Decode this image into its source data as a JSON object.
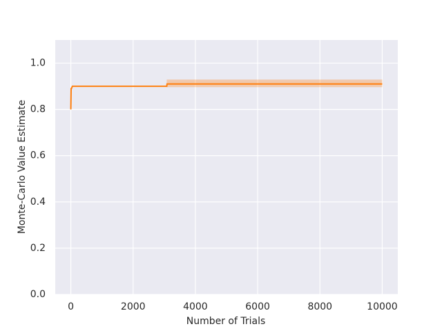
{
  "chart_data": {
    "type": "line",
    "x_label": "Number of Trials",
    "y_label": "Monte-Carlo Value Estimate",
    "x": [
      0,
      10,
      20,
      50,
      3080,
      3090,
      10000
    ],
    "series": [
      {
        "color": "#ff7f0e",
        "values": [
          0.8,
          0.89,
          0.89,
          0.9,
          0.9,
          0.91,
          0.91
        ]
      }
    ],
    "band": {
      "color": "#ff7f0e",
      "x": [
        3080,
        10000
      ],
      "lower": [
        0.896,
        0.896
      ],
      "upper": [
        0.929,
        0.929
      ]
    },
    "xlim": [
      -500,
      10500
    ],
    "ylim": [
      0,
      1.1
    ],
    "xticks": [
      0,
      2000,
      4000,
      6000,
      8000,
      10000
    ],
    "yticks": [
      {
        "value": 0,
        "label": "0.0"
      },
      0.2,
      0.4,
      0.6,
      0.8,
      {
        "value": 1,
        "label": "1.0"
      }
    ],
    "grid": true,
    "background": "#eaeaf2"
  }
}
